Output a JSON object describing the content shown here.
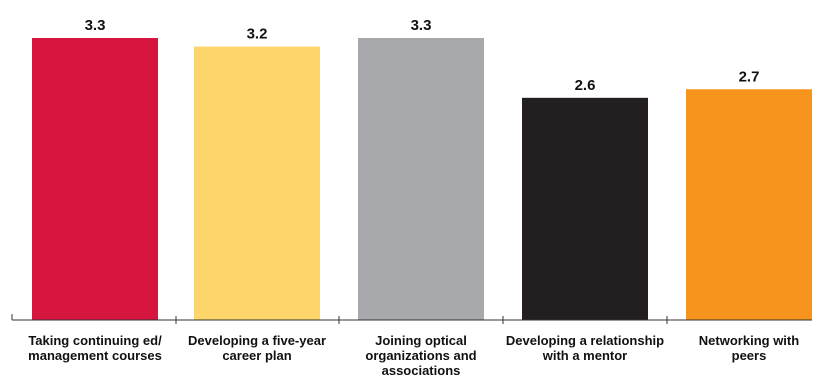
{
  "chart_data": {
    "type": "bar",
    "categories": [
      [
        "Taking continuing ed/",
        "management courses"
      ],
      [
        "Developing a five-year",
        "career plan"
      ],
      [
        "Joining optical",
        "organizations and",
        "associations"
      ],
      [
        "Developing a relationship",
        "with a mentor"
      ],
      [
        "Networking with",
        "peers"
      ]
    ],
    "values": [
      3.3,
      3.2,
      3.3,
      2.6,
      2.7
    ],
    "value_labels": [
      "3.3",
      "3.2",
      "3.3",
      "2.6",
      "2.7"
    ],
    "colors": [
      "#d6163f",
      "#fdd56a",
      "#a7a9ac",
      "#231f20",
      "#f7941d"
    ],
    "ylim": [
      0,
      3.3
    ],
    "title": "",
    "xlabel": "",
    "ylabel": "",
    "grid": false
  }
}
